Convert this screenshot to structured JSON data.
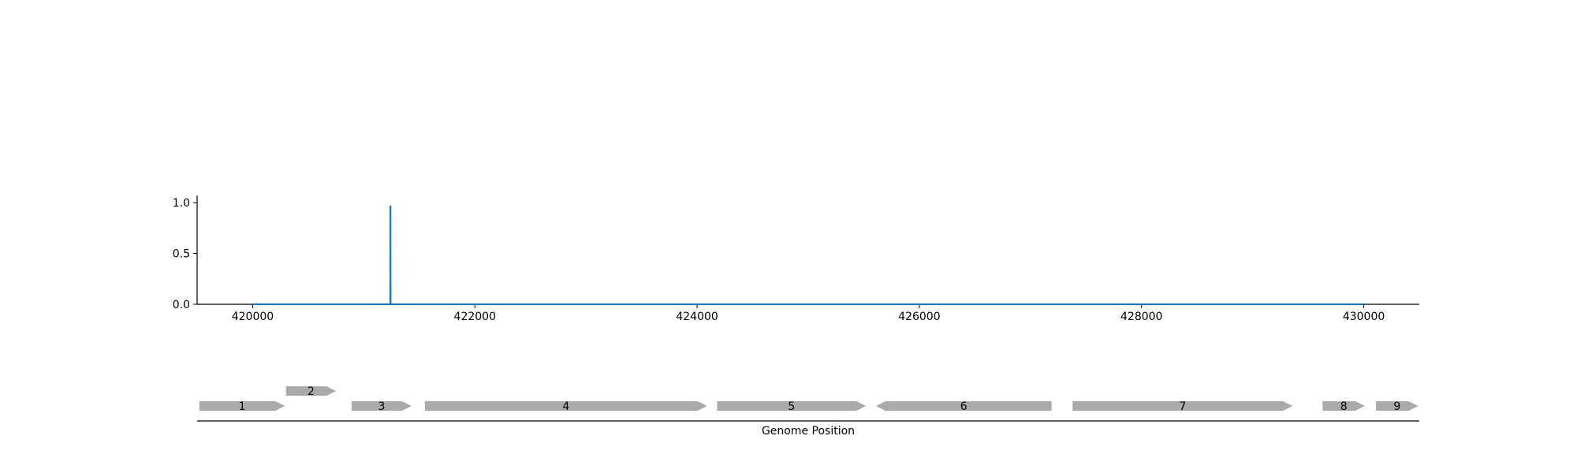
{
  "chart_data": {
    "type": "line",
    "title": "",
    "ylabel": "",
    "xlim": [
      419500,
      430500
    ],
    "ylim": [
      0,
      1.07
    ],
    "x_ticks": [
      420000,
      422000,
      424000,
      426000,
      428000,
      430000
    ],
    "y_ticks": [
      0.0,
      0.5,
      1.0
    ],
    "x_tick_labels": [
      "420000",
      "422000",
      "424000",
      "426000",
      "428000",
      "430000"
    ],
    "y_tick_labels": [
      "0.0",
      "0.5",
      "1.0"
    ],
    "series": [
      {
        "color": "#1f77b4",
        "x": [
          420000,
          421239,
          421240,
          421241,
          430000
        ],
        "y": [
          0,
          0,
          0.97,
          0,
          0
        ]
      }
    ],
    "grid": false,
    "genes": {
      "xlabel": "Genome Position",
      "color": "#aaaaaa",
      "items": [
        {
          "label": "1",
          "start": 419520,
          "end": 420290,
          "strand": "+",
          "row": 0
        },
        {
          "label": "2",
          "start": 420300,
          "end": 420750,
          "strand": "+",
          "row": 1
        },
        {
          "label": "3",
          "start": 420890,
          "end": 421430,
          "strand": "+",
          "row": 0
        },
        {
          "label": "4",
          "start": 421550,
          "end": 424090,
          "strand": "+",
          "row": 0
        },
        {
          "label": "5",
          "start": 424180,
          "end": 425520,
          "strand": "+",
          "row": 0
        },
        {
          "label": "6",
          "start": 425610,
          "end": 427190,
          "strand": "-",
          "row": 0
        },
        {
          "label": "7",
          "start": 427380,
          "end": 429360,
          "strand": "+",
          "row": 0
        },
        {
          "label": "8",
          "start": 429630,
          "end": 430010,
          "strand": "+",
          "row": 0
        },
        {
          "label": "9",
          "start": 430110,
          "end": 430490,
          "strand": "+",
          "row": 0
        }
      ]
    }
  }
}
